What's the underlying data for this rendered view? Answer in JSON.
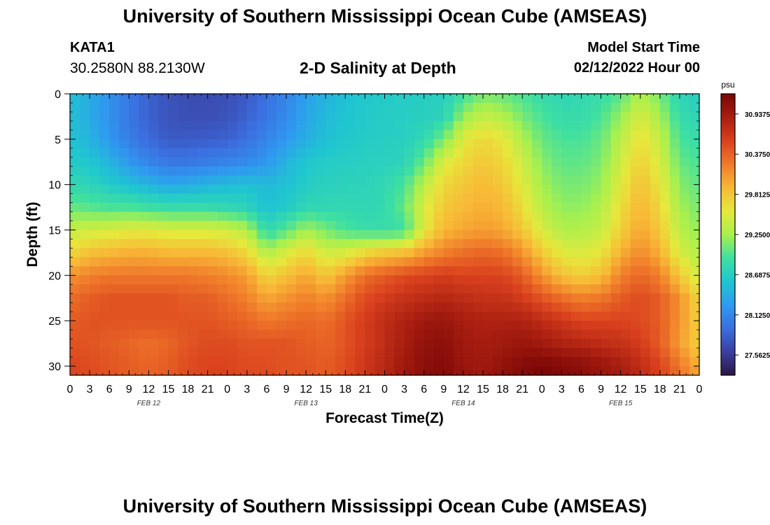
{
  "header": {
    "title": "University of Southern Mississippi Ocean Cube (AMSEAS)",
    "station_id": "KATA1",
    "coords": "30.2580N  88.2130W",
    "chart_title": "2-D Salinity at Depth",
    "model_start_label": "Model Start Time",
    "model_start_value": "02/12/2022 Hour 00"
  },
  "footer": {
    "title": "University of Southern Mississippi Ocean Cube (AMSEAS)"
  },
  "chart_data": {
    "type": "heatmap",
    "title": "2-D Salinity at Depth",
    "xlabel": "Forecast Time(Z)",
    "ylabel": "Depth (ft)",
    "xlim": [
      0,
      96
    ],
    "ylim": [
      0,
      31
    ],
    "y_inverted": true,
    "x_tick_values": [
      0,
      3,
      6,
      9,
      12,
      15,
      18,
      21,
      24,
      27,
      30,
      33,
      36,
      39,
      42,
      45,
      48,
      51,
      54,
      57,
      60,
      63,
      66,
      69,
      72,
      75,
      78,
      81,
      84,
      87,
      90,
      93,
      96
    ],
    "x_tick_labels": [
      "0",
      "3",
      "6",
      "9",
      "12",
      "15",
      "18",
      "21",
      "0",
      "3",
      "6",
      "9",
      "12",
      "15",
      "18",
      "21",
      "0",
      "3",
      "6",
      "9",
      "12",
      "15",
      "18",
      "21",
      "0",
      "3",
      "6",
      "9",
      "12",
      "15",
      "18",
      "21",
      "0"
    ],
    "date_labels": [
      {
        "label": "FEB 12",
        "hour": 12
      },
      {
        "label": "FEB 13",
        "hour": 36
      },
      {
        "label": "FEB 14",
        "hour": 60
      },
      {
        "label": "FEB 15",
        "hour": 84
      }
    ],
    "y_ticks": [
      0,
      5,
      10,
      15,
      20,
      25,
      30
    ],
    "hours": [
      0,
      3,
      6,
      9,
      12,
      15,
      18,
      21,
      24,
      27,
      30,
      33,
      36,
      39,
      42,
      45,
      48,
      51,
      54,
      57,
      60,
      63,
      66,
      69,
      72,
      75,
      78,
      81,
      84,
      87,
      90,
      93,
      96
    ],
    "depths": [
      0,
      2.5,
      5,
      7.5,
      10,
      12.5,
      15,
      17.5,
      20,
      22.5,
      25,
      27.5,
      30,
      31
    ],
    "salinity": [
      [
        28.55,
        28.4,
        28.2,
        28.0,
        27.85,
        27.75,
        27.7,
        27.7,
        27.72,
        27.8,
        27.95,
        28.1,
        28.3,
        28.45,
        28.55,
        28.62,
        28.65,
        28.67,
        28.68,
        28.7,
        28.9,
        29.1,
        29.05,
        28.95,
        28.85,
        28.78,
        28.8,
        28.85,
        29.0,
        29.3,
        29.1,
        28.75,
        28.7
      ],
      [
        28.55,
        28.4,
        28.2,
        28.0,
        27.85,
        27.75,
        27.72,
        27.72,
        27.75,
        27.85,
        28.0,
        28.15,
        28.35,
        28.5,
        28.58,
        28.64,
        28.67,
        28.68,
        28.7,
        28.75,
        29.2,
        29.4,
        29.3,
        29.1,
        28.95,
        28.85,
        28.85,
        28.95,
        29.2,
        29.5,
        29.25,
        28.85,
        28.75
      ],
      [
        28.58,
        28.45,
        28.25,
        28.05,
        27.9,
        27.8,
        27.8,
        27.82,
        27.85,
        27.95,
        28.1,
        28.25,
        28.42,
        28.55,
        28.62,
        28.66,
        28.68,
        28.7,
        28.8,
        29.1,
        29.55,
        29.7,
        29.6,
        29.3,
        29.05,
        28.95,
        28.95,
        29.05,
        29.35,
        29.65,
        29.4,
        28.95,
        28.85
      ],
      [
        28.65,
        28.6,
        28.45,
        28.25,
        28.1,
        28.0,
        28.0,
        28.05,
        28.1,
        28.15,
        28.25,
        28.45,
        28.6,
        28.66,
        28.68,
        28.7,
        28.72,
        28.75,
        29.05,
        29.5,
        29.7,
        29.8,
        29.7,
        29.45,
        29.15,
        29.02,
        29.02,
        29.12,
        29.45,
        29.75,
        29.5,
        29.05,
        28.95
      ],
      [
        28.8,
        28.75,
        28.65,
        28.55,
        28.45,
        28.35,
        28.4,
        28.45,
        28.5,
        28.55,
        28.5,
        28.55,
        28.66,
        28.72,
        28.74,
        28.75,
        28.8,
        28.95,
        29.35,
        29.7,
        29.8,
        29.9,
        29.8,
        29.55,
        29.25,
        29.1,
        29.1,
        29.2,
        29.55,
        29.85,
        29.6,
        29.15,
        29.02
      ],
      [
        29.05,
        29.0,
        28.95,
        28.95,
        28.9,
        28.85,
        28.85,
        28.85,
        28.8,
        28.75,
        28.55,
        28.65,
        28.8,
        28.8,
        28.8,
        28.78,
        28.82,
        29.05,
        29.5,
        29.8,
        29.9,
        29.95,
        29.9,
        29.65,
        29.35,
        29.18,
        29.18,
        29.3,
        29.65,
        29.92,
        29.7,
        29.25,
        29.1
      ],
      [
        29.4,
        29.45,
        29.5,
        29.55,
        29.55,
        29.5,
        29.5,
        29.5,
        29.45,
        29.3,
        28.8,
        29.0,
        29.25,
        29.1,
        28.95,
        28.88,
        28.85,
        28.9,
        29.55,
        29.9,
        30.0,
        30.05,
        30.0,
        29.8,
        29.5,
        29.3,
        29.3,
        29.4,
        29.75,
        30.0,
        29.8,
        29.35,
        29.18
      ],
      [
        29.7,
        29.85,
        29.9,
        29.95,
        29.95,
        29.9,
        29.9,
        29.9,
        29.85,
        29.7,
        29.3,
        29.5,
        29.7,
        29.45,
        29.5,
        29.7,
        29.8,
        29.85,
        30.05,
        30.2,
        30.3,
        30.35,
        30.3,
        30.1,
        29.8,
        29.55,
        29.5,
        29.6,
        29.95,
        30.15,
        29.95,
        29.5,
        29.3
      ],
      [
        30.1,
        30.2,
        30.25,
        30.25,
        30.25,
        30.25,
        30.25,
        30.2,
        30.15,
        30.05,
        29.7,
        29.85,
        30.0,
        29.8,
        30.05,
        30.3,
        30.4,
        30.5,
        30.55,
        30.6,
        30.55,
        30.55,
        30.55,
        30.4,
        30.1,
        29.85,
        29.75,
        29.85,
        30.2,
        30.35,
        30.2,
        29.8,
        29.45
      ],
      [
        30.3,
        30.4,
        30.45,
        30.45,
        30.45,
        30.45,
        30.4,
        30.4,
        30.3,
        30.2,
        30.0,
        30.1,
        30.2,
        30.1,
        30.3,
        30.5,
        30.6,
        30.7,
        30.75,
        30.8,
        30.75,
        30.7,
        30.7,
        30.6,
        30.45,
        30.3,
        30.2,
        30.25,
        30.4,
        30.5,
        30.4,
        30.1,
        29.7
      ],
      [
        30.4,
        30.45,
        30.45,
        30.45,
        30.45,
        30.45,
        30.45,
        30.45,
        30.4,
        30.35,
        30.25,
        30.3,
        30.35,
        30.3,
        30.45,
        30.6,
        30.75,
        30.85,
        30.95,
        31.0,
        30.9,
        30.85,
        30.85,
        30.85,
        30.75,
        30.65,
        30.55,
        30.55,
        30.55,
        30.5,
        30.4,
        30.1,
        29.75
      ],
      [
        30.45,
        30.45,
        30.4,
        30.35,
        30.3,
        30.35,
        30.45,
        30.5,
        30.5,
        30.45,
        30.45,
        30.45,
        30.4,
        30.35,
        30.45,
        30.6,
        30.75,
        30.9,
        31.05,
        31.1,
        30.95,
        30.9,
        30.95,
        31.0,
        30.95,
        30.85,
        30.8,
        30.75,
        30.7,
        30.6,
        30.4,
        30.05,
        29.75
      ],
      [
        30.55,
        30.5,
        30.45,
        30.4,
        30.35,
        30.4,
        30.5,
        30.55,
        30.55,
        30.5,
        30.5,
        30.45,
        30.45,
        30.4,
        30.5,
        30.65,
        30.8,
        30.95,
        31.1,
        31.15,
        31.0,
        30.95,
        31.05,
        31.15,
        31.2,
        31.15,
        31.1,
        31.0,
        30.9,
        30.75,
        30.55,
        30.25,
        29.95
      ],
      [
        30.55,
        30.5,
        30.45,
        30.4,
        30.35,
        30.4,
        30.5,
        30.55,
        30.55,
        30.5,
        30.5,
        30.45,
        30.45,
        30.4,
        30.5,
        30.65,
        30.8,
        30.95,
        31.1,
        31.15,
        31.0,
        30.95,
        31.05,
        31.15,
        31.2,
        31.15,
        31.1,
        31.0,
        30.9,
        30.75,
        30.55,
        30.3,
        30.0
      ]
    ],
    "colorbar": {
      "unit": "psu",
      "min": 27.28,
      "max": 31.22,
      "ticks": [
        "30.9375",
        "30.3750",
        "29.8125",
        "29.2500",
        "28.6875",
        "28.1250",
        "27.5625"
      ],
      "colors": [
        "#2a1645",
        "#3b3fa0",
        "#3b6fe0",
        "#2f9af0",
        "#1fc6d0",
        "#3fe0a0",
        "#a8f04e",
        "#e6e83c",
        "#f8b836",
        "#f07a2a",
        "#d9401e",
        "#a81e10",
        "#7a0606"
      ]
    }
  }
}
